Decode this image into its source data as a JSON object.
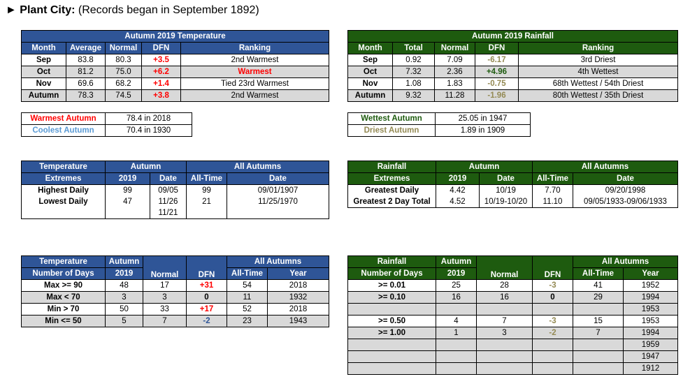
{
  "header": {
    "arrow": "►",
    "city": "Plant City:",
    "note": "(Records began in September 1892)"
  },
  "temp_table": {
    "title": "Autumn 2019 Temperature",
    "cols": [
      "Month",
      "Average",
      "Normal",
      "DFN",
      "Ranking"
    ],
    "rows": [
      [
        "Sep",
        "83.8",
        "80.3",
        "+3.5",
        "2nd Warmest"
      ],
      [
        "Oct",
        "81.2",
        "75.0",
        "+6.2",
        "Warmest"
      ],
      [
        "Nov",
        "69.6",
        "68.2",
        "+1.4",
        "Tied 23rd Warmest"
      ],
      [
        "Autumn",
        "78.3",
        "74.5",
        "+3.8",
        "2nd Warmest"
      ]
    ]
  },
  "rain_table": {
    "title": "Autumn 2019 Rainfall",
    "cols": [
      "Month",
      "Total",
      "Normal",
      "DFN",
      "Ranking"
    ],
    "rows": [
      [
        "Sep",
        "0.92",
        "7.09",
        "-6.17",
        "3rd Driest"
      ],
      [
        "Oct",
        "7.32",
        "2.36",
        "+4.96",
        "4th Wettest"
      ],
      [
        "Nov",
        "1.08",
        "1.83",
        "-0.75",
        "68th Wettest / 54th Driest"
      ],
      [
        "Autumn",
        "9.32",
        "11.28",
        "-1.96",
        "80th Wettest / 35th Driest"
      ]
    ]
  },
  "temp_records": [
    [
      "Warmest Autumn",
      "78.4 in 2018"
    ],
    [
      "Coolest Autumn",
      "70.4 in 1930"
    ]
  ],
  "rain_records": [
    [
      "Wettest Autumn",
      "25.05 in 1947"
    ],
    [
      "Driest Autumn",
      "1.89 in 1909"
    ]
  ],
  "temp_extremes": {
    "h1": "Temperature",
    "h2": "Extremes",
    "autumn": "Autumn",
    "all": "All Autumns",
    "sub": [
      "2019",
      "Date",
      "All-Time",
      "Date"
    ],
    "rows": [
      [
        "Highest Daily",
        "99",
        "09/05",
        "99",
        "09/01/1907"
      ],
      [
        "Lowest Daily",
        "47",
        "11/26",
        "21",
        "11/25/1970"
      ],
      [
        "",
        "",
        "11/21",
        "",
        ""
      ]
    ]
  },
  "rain_extremes": {
    "h1": "Rainfall",
    "h2": "Extremes",
    "autumn": "Autumn",
    "all": "All Autumns",
    "sub": [
      "2019",
      "Date",
      "All-Time",
      "Date"
    ],
    "rows": [
      [
        "Greatest Daily",
        "4.42",
        "10/19",
        "7.70",
        "09/20/1998"
      ],
      [
        "Greatest 2 Day Total",
        "4.52",
        "10/19-10/20",
        "11.10",
        "09/05/1933-09/06/1933"
      ]
    ]
  },
  "temp_days": {
    "h1": "Temperature",
    "h2": "Number of Days",
    "autumn1": "Autumn",
    "autumn2": "2019",
    "normal": "Normal",
    "dfn": "DFN",
    "all": "All Autumns",
    "alltime": "All-Time",
    "year": "Year",
    "rows": [
      [
        "Max >= 90",
        "48",
        "17",
        "+31",
        "54",
        "2018"
      ],
      [
        "Max < 70",
        "3",
        "3",
        "0",
        "11",
        "1932"
      ],
      [
        "Min > 70",
        "50",
        "33",
        "+17",
        "52",
        "2018"
      ],
      [
        "Min <= 50",
        "5",
        "7",
        "-2",
        "23",
        "1943"
      ]
    ]
  },
  "rain_days": {
    "h1": "Rainfall",
    "h2": "Number of Days",
    "autumn1": "Autumn",
    "autumn2": "2019",
    "normal": "Normal",
    "dfn": "DFN",
    "all": "All Autumns",
    "alltime": "All-Time",
    "year": "Year",
    "rows": [
      [
        ">= 0.01",
        "25",
        "28",
        "-3",
        "41",
        "1952"
      ],
      [
        ">= 0.10",
        "16",
        "16",
        "0",
        "29",
        "1994"
      ],
      [
        "",
        "",
        "",
        "",
        "",
        "1953"
      ],
      [
        ">= 0.50",
        "4",
        "7",
        "-3",
        "15",
        "1953"
      ],
      [
        ">= 1.00",
        "1",
        "3",
        "-2",
        "7",
        "1994"
      ],
      [
        "",
        "",
        "",
        "",
        "",
        "1959"
      ],
      [
        "",
        "",
        "",
        "",
        "",
        "1947"
      ],
      [
        "",
        "",
        "",
        "",
        "",
        "1912"
      ]
    ]
  },
  "colors": {
    "blue_header": "#2f5597",
    "green_header": "#1e5b0f",
    "record_red": "#ff0000",
    "dry_brown": "#948a54"
  }
}
